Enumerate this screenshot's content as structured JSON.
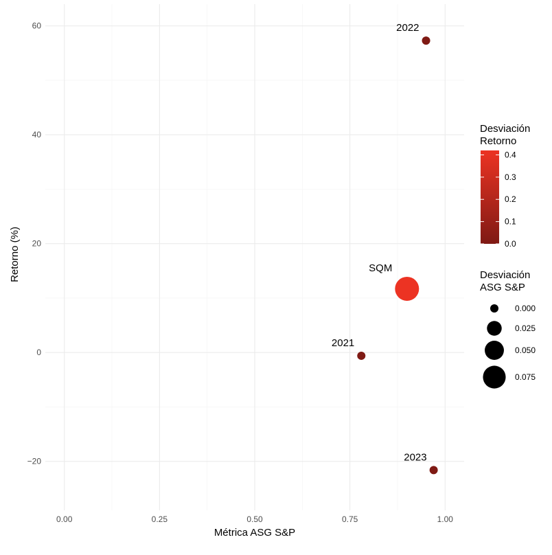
{
  "chart_data": {
    "type": "scatter",
    "xlabel": "Métrica ASG S&P",
    "ylabel": "Retorno (%)",
    "xlim": [
      -0.05,
      1.05
    ],
    "ylim": [
      -29,
      64
    ],
    "x_ticks": [
      0,
      0.25,
      0.5,
      0.75,
      1
    ],
    "x_tick_labels": [
      "0.00",
      "0.25",
      "0.50",
      "0.75",
      "1.00"
    ],
    "y_ticks": [
      -20,
      0,
      20,
      40,
      60
    ],
    "y_tick_labels": [
      "−20",
      "0",
      "20",
      "40",
      "60"
    ],
    "grid": true,
    "points": [
      {
        "label": "2022",
        "x": 0.95,
        "y": 57.3,
        "ret_dev": 0.0,
        "asg_dev": 0.0,
        "color": "#7f1a14"
      },
      {
        "label": "SQM",
        "x": 0.9,
        "y": 11.7,
        "ret_dev": 0.42,
        "asg_dev": 0.085,
        "color": "#ec3323"
      },
      {
        "label": "2021",
        "x": 0.78,
        "y": -0.6,
        "ret_dev": 0.0,
        "asg_dev": 0.0,
        "color": "#7f1a14"
      },
      {
        "label": "2023",
        "x": 0.97,
        "y": -21.6,
        "ret_dev": 0.0,
        "asg_dev": 0.0,
        "color": "#7f1a14"
      }
    ],
    "legend": {
      "placement": "right",
      "color_scale": {
        "title_lines": [
          "Desviación",
          "Retorno"
        ],
        "breaks": [
          0.0,
          0.1,
          0.2,
          0.3,
          0.4
        ],
        "labels": [
          "0.0",
          "0.1",
          "0.2",
          "0.3",
          "0.4"
        ],
        "range": [
          0.0,
          0.42
        ],
        "low_color": "#7f1a14",
        "high_color": "#ec3323"
      },
      "size_scale": {
        "title_lines": [
          "Desviación",
          "ASG S&P"
        ],
        "breaks": [
          0.0,
          0.025,
          0.05,
          0.075
        ],
        "labels": [
          "0.000",
          "0.025",
          "0.050",
          "0.075"
        ],
        "color": "#000000"
      }
    }
  }
}
